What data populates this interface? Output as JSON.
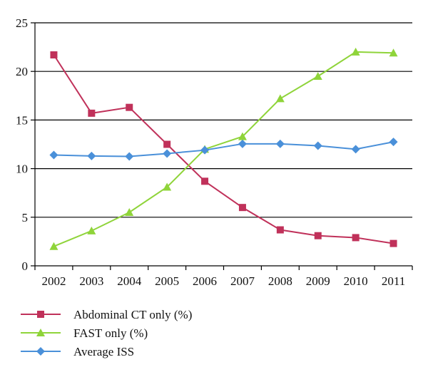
{
  "chart_data": {
    "type": "line",
    "title": "",
    "xlabel": "",
    "ylabel": "",
    "categories": [
      "2002",
      "2003",
      "2004",
      "2005",
      "2006",
      "2007",
      "2008",
      "2009",
      "2010",
      "2011"
    ],
    "ylim": [
      0,
      25
    ],
    "yticks": [
      "0",
      "5",
      "10",
      "15",
      "20",
      "25"
    ],
    "grid": "horizontal",
    "legend_position": "bottom-left",
    "series": [
      {
        "name": "Abdominal CT only (%)",
        "color": "#c0315a",
        "marker": "square",
        "values": [
          21.7,
          15.7,
          16.3,
          12.5,
          8.7,
          6.0,
          3.7,
          3.1,
          2.9,
          2.3
        ]
      },
      {
        "name": "FAST only (%)",
        "color": "#8fd43a",
        "marker": "triangle",
        "values": [
          2.0,
          3.6,
          5.5,
          8.1,
          12.0,
          13.3,
          17.2,
          19.5,
          22.0,
          21.9
        ]
      },
      {
        "name": "Average ISS",
        "color": "#4a90d9",
        "marker": "diamond",
        "values": [
          11.4,
          11.3,
          11.25,
          11.55,
          11.9,
          12.55,
          12.55,
          12.35,
          12.0,
          12.75
        ]
      }
    ]
  }
}
